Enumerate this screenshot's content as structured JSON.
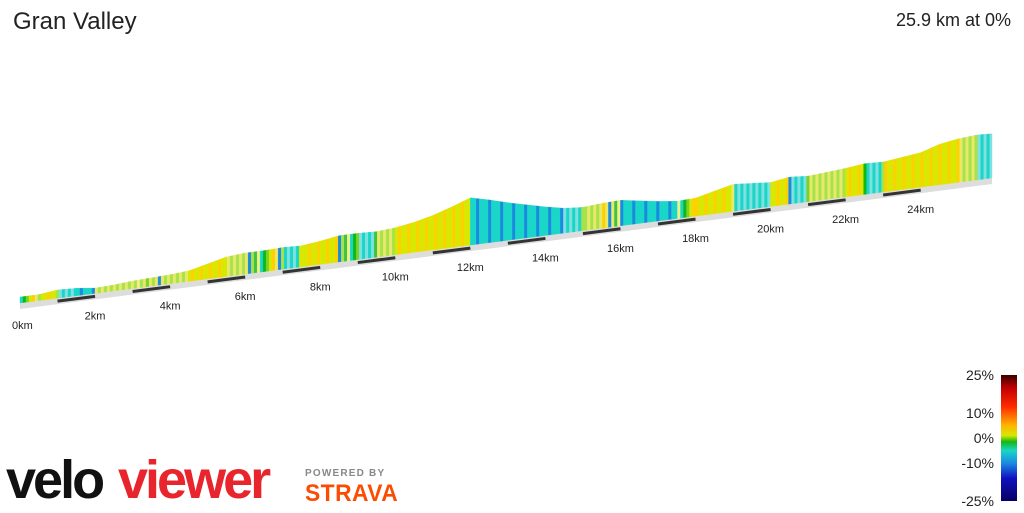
{
  "header": {
    "title": "Gran Valley",
    "summary": "25.9 km at 0%"
  },
  "chart_data": {
    "type": "area",
    "x_unit": "km",
    "x_ticks": [
      "0km",
      "2km",
      "4km",
      "6km",
      "8km",
      "10km",
      "12km",
      "14km",
      "16km",
      "18km",
      "20km",
      "22km",
      "24km"
    ],
    "x_range": [
      0,
      25.9
    ],
    "relative_height": [
      [
        0,
        0.0
      ],
      [
        0.5,
        0.0
      ],
      [
        1.0,
        0.03
      ],
      [
        1.5,
        0.02
      ],
      [
        2.0,
        -0.01
      ],
      [
        2.5,
        0.0
      ],
      [
        3.0,
        0.02
      ],
      [
        3.5,
        0.03
      ],
      [
        4.0,
        0.04
      ],
      [
        4.5,
        0.06
      ],
      [
        5.0,
        0.12
      ],
      [
        5.5,
        0.18
      ],
      [
        6.0,
        0.2
      ],
      [
        6.5,
        0.2
      ],
      [
        7.0,
        0.21
      ],
      [
        7.5,
        0.2
      ],
      [
        8.0,
        0.23
      ],
      [
        8.5,
        0.27
      ],
      [
        9.0,
        0.27
      ],
      [
        9.5,
        0.26
      ],
      [
        10.0,
        0.28
      ],
      [
        10.5,
        0.32
      ],
      [
        11.0,
        0.38
      ],
      [
        11.5,
        0.46
      ],
      [
        12.0,
        0.55
      ],
      [
        12.5,
        0.49
      ],
      [
        13.0,
        0.42
      ],
      [
        13.5,
        0.36
      ],
      [
        14.0,
        0.3
      ],
      [
        14.5,
        0.25
      ],
      [
        15.0,
        0.23
      ],
      [
        15.5,
        0.25
      ],
      [
        16.0,
        0.26
      ],
      [
        16.5,
        0.22
      ],
      [
        17.0,
        0.18
      ],
      [
        17.5,
        0.15
      ],
      [
        18.0,
        0.16
      ],
      [
        18.5,
        0.22
      ],
      [
        19.0,
        0.28
      ],
      [
        19.5,
        0.26
      ],
      [
        20.0,
        0.24
      ],
      [
        20.5,
        0.28
      ],
      [
        21.0,
        0.26
      ],
      [
        21.5,
        0.28
      ],
      [
        22.0,
        0.3
      ],
      [
        22.5,
        0.33
      ],
      [
        23.0,
        0.32
      ],
      [
        23.5,
        0.35
      ],
      [
        24.0,
        0.38
      ],
      [
        24.5,
        0.46
      ],
      [
        25.0,
        0.5
      ],
      [
        25.5,
        0.52
      ],
      [
        25.9,
        0.51
      ]
    ],
    "gradient_legend": {
      "labels": [
        "25%",
        "10%",
        "0%",
        "-10%",
        "-25%"
      ],
      "values": [
        25,
        10,
        0,
        -10,
        -25
      ]
    }
  },
  "branding": {
    "powered_by": "POWERED BY",
    "strava": "STRAVA",
    "brand_colors": {
      "velo": "#111111",
      "viewer": "#e8242c",
      "strava": "#fc4c02"
    }
  }
}
